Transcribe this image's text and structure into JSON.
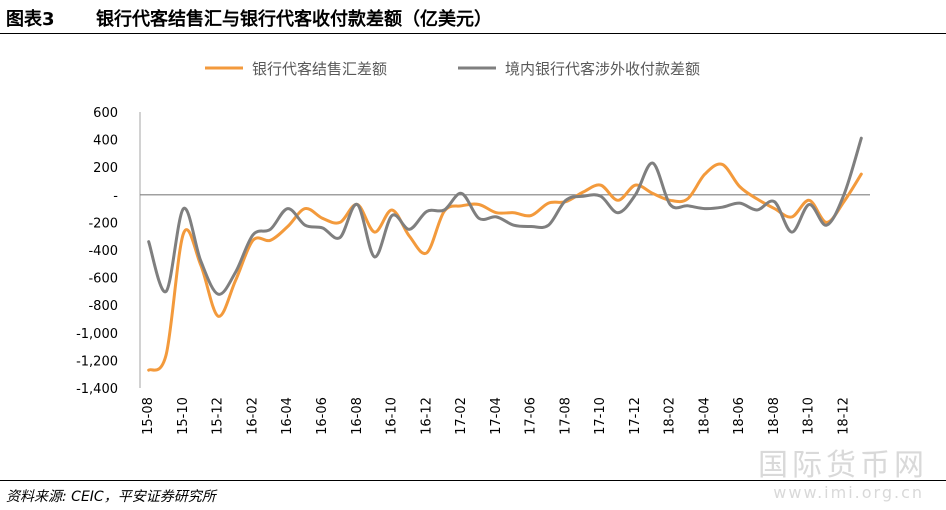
{
  "header": {
    "figure_number": "图表3",
    "title": "银行代客结售汇与银行代客收付款差额（亿美元）"
  },
  "footer": {
    "source": "资料来源: CEIC，平安证券研究所"
  },
  "watermark": {
    "text": "国际货币网",
    "url": "www.imi.org.cn"
  },
  "chart_data": {
    "type": "line",
    "title": "",
    "xlabel": "",
    "ylabel": "",
    "ylim": [
      -1400,
      600
    ],
    "yticks": [
      600,
      400,
      200,
      0,
      -200,
      -400,
      -600,
      -800,
      -1000,
      -1200,
      -1400
    ],
    "ytick_labels": [
      "600",
      "400",
      "200",
      "-",
      "-200",
      "-400",
      "-600",
      "-800",
      "-1,000",
      "-1,200",
      "-1,400"
    ],
    "xtick_labels": [
      "15-08",
      "15-10",
      "15-12",
      "16-02",
      "16-04",
      "16-06",
      "16-08",
      "16-10",
      "16-12",
      "17-02",
      "17-04",
      "17-06",
      "17-08",
      "17-10",
      "17-12",
      "18-02",
      "18-04",
      "18-06",
      "18-08",
      "18-10",
      "18-12"
    ],
    "categories": [
      "15-08",
      "15-09",
      "15-10",
      "15-11",
      "15-12",
      "16-01",
      "16-02",
      "16-03",
      "16-04",
      "16-05",
      "16-06",
      "16-07",
      "16-08",
      "16-09",
      "16-10",
      "16-11",
      "16-12",
      "17-01",
      "17-02",
      "17-03",
      "17-04",
      "17-05",
      "17-06",
      "17-07",
      "17-08",
      "17-09",
      "17-10",
      "17-11",
      "17-12",
      "18-01",
      "18-02",
      "18-03",
      "18-04",
      "18-05",
      "18-06",
      "18-07",
      "18-08",
      "18-09",
      "18-10",
      "18-11",
      "18-12",
      "19-01"
    ],
    "grid": false,
    "zero_line": true,
    "legend_position": "top",
    "series": [
      {
        "name": "银行代客结售汇差额",
        "color": "#f39a3c",
        "values": [
          -1270,
          -1160,
          -280,
          -510,
          -880,
          -620,
          -330,
          -330,
          -230,
          -100,
          -170,
          -200,
          -70,
          -270,
          -110,
          -300,
          -420,
          -120,
          -80,
          -70,
          -130,
          -130,
          -150,
          -60,
          -50,
          20,
          70,
          -40,
          70,
          10,
          -40,
          -30,
          150,
          220,
          60,
          -30,
          -100,
          -160,
          -40,
          -200,
          -50,
          150
        ]
      },
      {
        "name": "境内银行代客涉外收付款差额",
        "color": "#7f7f7f",
        "values": [
          -340,
          -700,
          -100,
          -480,
          -720,
          -560,
          -290,
          -250,
          -100,
          -220,
          -240,
          -310,
          -70,
          -450,
          -150,
          -250,
          -120,
          -110,
          10,
          -170,
          -160,
          -220,
          -230,
          -220,
          -40,
          -10,
          -10,
          -130,
          0,
          230,
          -70,
          -80,
          -100,
          -90,
          -60,
          -110,
          -50,
          -270,
          -70,
          -220,
          0,
          410
        ]
      }
    ]
  }
}
